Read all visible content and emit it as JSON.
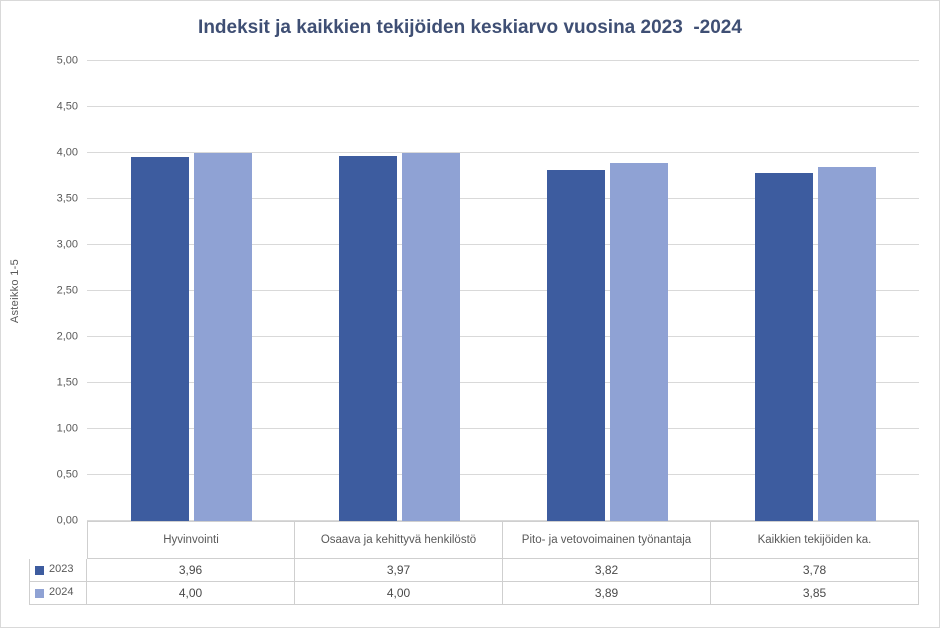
{
  "chart_data": {
    "type": "bar",
    "title": "Indeksit ja kaikkien tekijöiden keskiarvo vuosina 2023  -2024",
    "xlabel": "",
    "ylabel": "Asteikko 1-5",
    "ylim": [
      0,
      5
    ],
    "ytick_step": 0.5,
    "ytick_labels": [
      "5,00",
      "4,50",
      "4,00",
      "3,50",
      "3,00",
      "2,50",
      "2,00",
      "1,50",
      "1,00",
      "0,50",
      "0,00"
    ],
    "grid": true,
    "legend_position": "table-left",
    "categories": [
      "Hyvinvointi",
      "Osaava ja kehittyvä henkilöstö",
      "Pito- ja vetovoimainen työnantaja",
      "Kaikkien tekijöiden ka."
    ],
    "series": [
      {
        "name": "2023",
        "color": "#3D5C9F",
        "values": [
          3.96,
          3.97,
          3.82,
          3.78
        ],
        "labels": [
          "3,96",
          "3,97",
          "3,82",
          "3,78"
        ]
      },
      {
        "name": "2024",
        "color": "#8FA2D4",
        "values": [
          4.0,
          4.0,
          3.89,
          3.85
        ],
        "labels": [
          "4,00",
          "4,00",
          "3,89",
          "3,85"
        ]
      }
    ],
    "colors": {
      "title": "#3F4F74",
      "gridline": "#d9d9d9",
      "table_border": "#cfcfcf",
      "axis_text": "#595959"
    }
  }
}
